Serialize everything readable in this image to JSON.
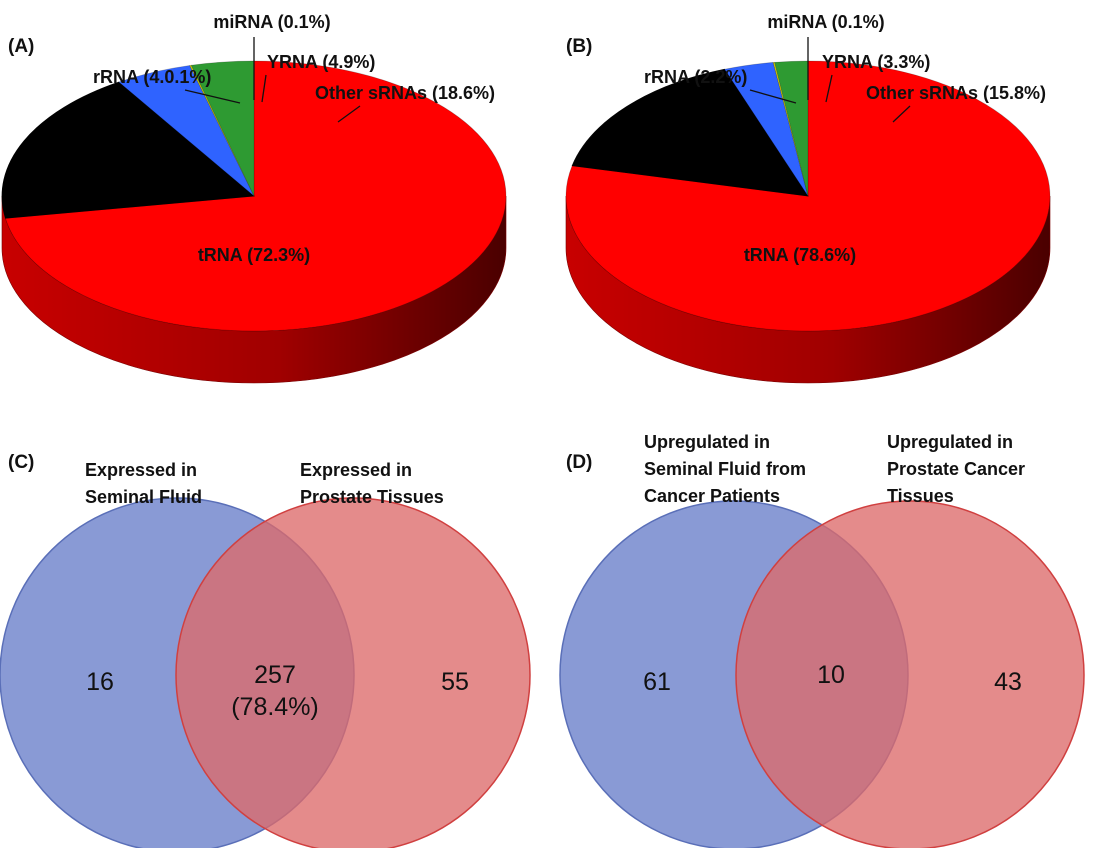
{
  "colors": {
    "tRNA": "#ff0000",
    "rRNA": "#2e9a32",
    "miRNA": "#d8d200",
    "YRNA": "#2f63ff",
    "Other sRNAs": "#000000",
    "venn_left": "#6f84cc",
    "venn_right": "#dc6a6a",
    "venn_overlap": "#a5566f"
  },
  "chart_data": [
    {
      "panel": "(A)",
      "type": "pie",
      "slices": [
        {
          "name": "tRNA",
          "value": 72.3,
          "label": "tRNA (72.3%)"
        },
        {
          "name": "Other sRNAs",
          "value": 18.6,
          "label": "Other sRNAs (18.6%)"
        },
        {
          "name": "YRNA",
          "value": 4.9,
          "label": "YRNA (4.9%)"
        },
        {
          "name": "miRNA",
          "value": 0.1,
          "label": "miRNA (0.1%)"
        },
        {
          "name": "rRNA",
          "value": 4.0,
          "label": "rRNA (4.0.1%)"
        }
      ]
    },
    {
      "panel": "(B)",
      "type": "pie",
      "slices": [
        {
          "name": "tRNA",
          "value": 78.6,
          "label": "tRNA (78.6%)"
        },
        {
          "name": "Other sRNAs",
          "value": 15.8,
          "label": "Other sRNAs (15.8%)"
        },
        {
          "name": "YRNA",
          "value": 3.3,
          "label": "YRNA (3.3%)"
        },
        {
          "name": "miRNA",
          "value": 0.1,
          "label": "miRNA (0.1%)"
        },
        {
          "name": "rRNA",
          "value": 2.2,
          "label": "rRNA (2.2%)"
        }
      ]
    },
    {
      "panel": "(C)",
      "type": "venn",
      "sets": [
        {
          "label_lines": [
            "Expressed in",
            "Seminal Fluid"
          ],
          "only": 16
        },
        {
          "label_lines": [
            "Expressed in",
            "Prostate Tissues"
          ],
          "only": 55
        }
      ],
      "overlap": {
        "value": 257,
        "note": "(78.4%)"
      }
    },
    {
      "panel": "(D)",
      "type": "venn",
      "sets": [
        {
          "label_lines": [
            "Upregulated in",
            "Seminal Fluid from",
            "Cancer Patients"
          ],
          "only": 61
        },
        {
          "label_lines": [
            "Upregulated in",
            "Prostate Cancer",
            "Tissues"
          ],
          "only": 43
        }
      ],
      "overlap": {
        "value": 10,
        "note": ""
      }
    }
  ]
}
